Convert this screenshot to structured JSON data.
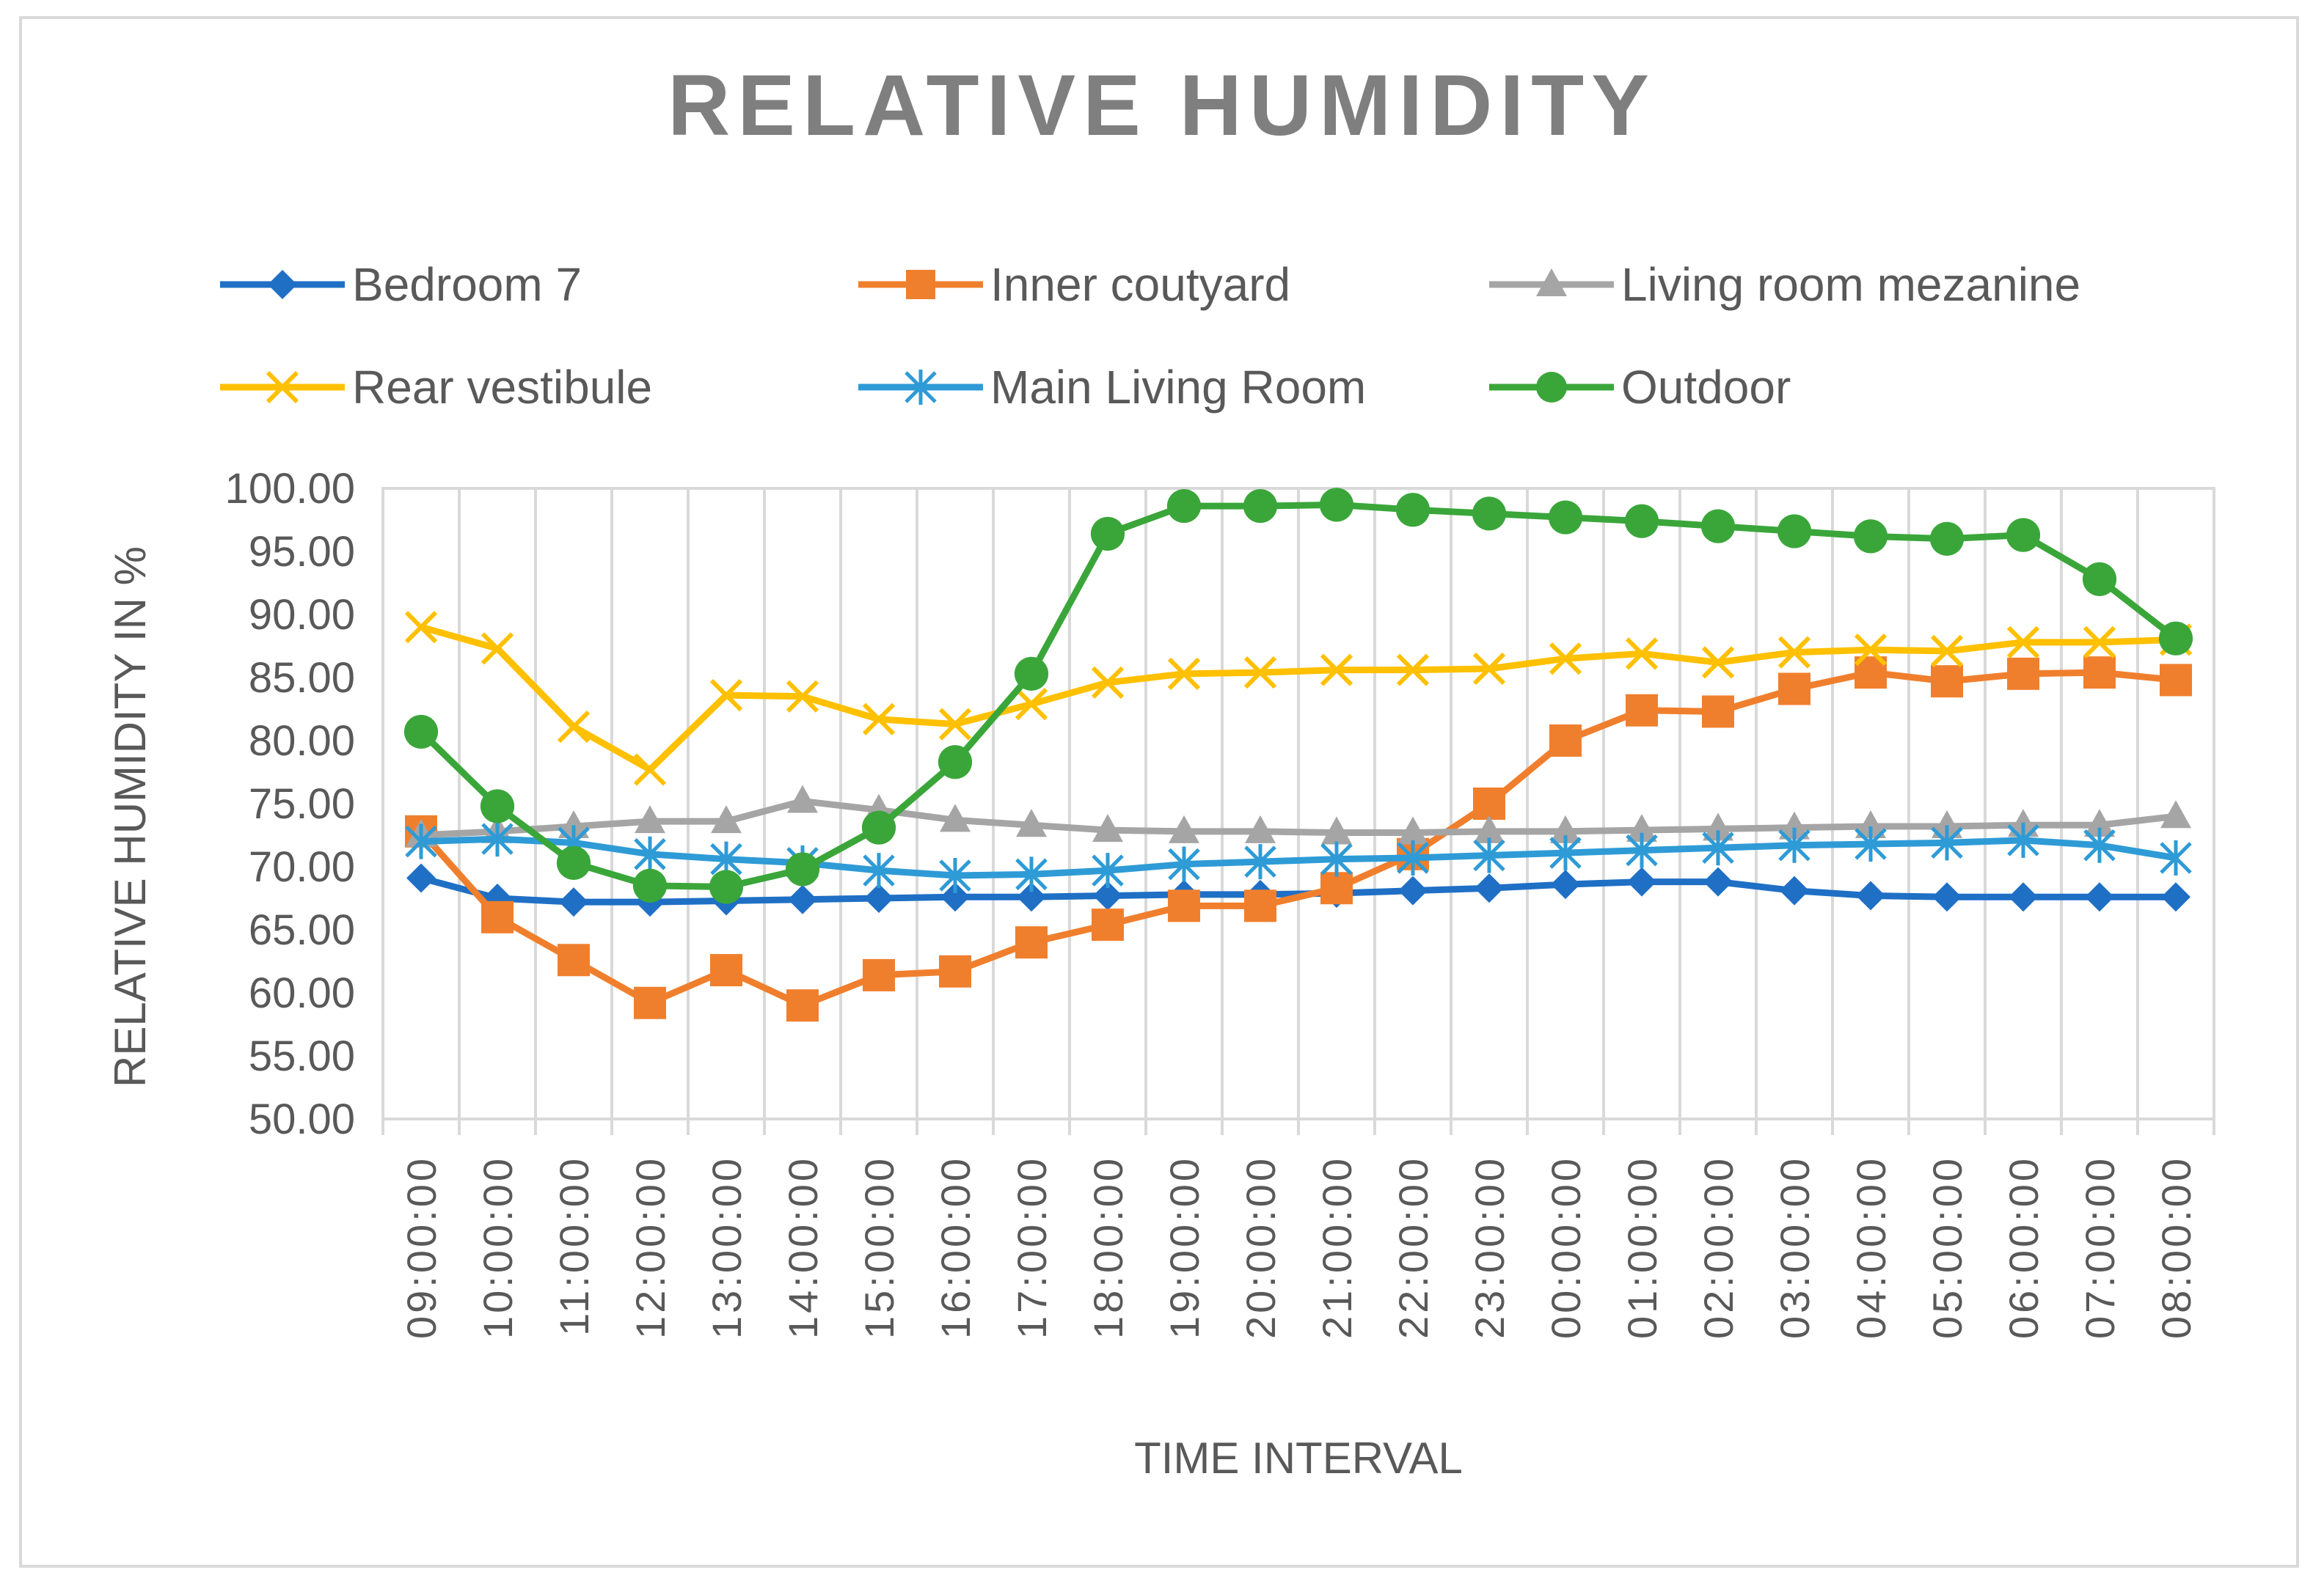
{
  "chart_data": {
    "type": "line",
    "title": "RELATIVE HUMIDITY",
    "xlabel": "TIME INTERVAL",
    "ylabel": "RELATIVE HUMIDITY IN %",
    "ylim": [
      50,
      100
    ],
    "yticks": [
      "100.00",
      "95.00",
      "90.00",
      "85.00",
      "80.00",
      "75.00",
      "70.00",
      "65.00",
      "60.00",
      "55.00",
      "50.00"
    ],
    "grid": "vertical",
    "legend_position": "top",
    "categories": [
      "09:00:00",
      "10:00:00",
      "11:00:00",
      "12:00:00",
      "13:00:00",
      "14:00:00",
      "15:00:00",
      "16:00:00",
      "17:00:00",
      "18:00:00",
      "19:00:00",
      "20:00:00",
      "21:00:00",
      "22:00:00",
      "23:00:00",
      "00:00:00",
      "01:00:00",
      "02:00:00",
      "03:00:00",
      "04:00:00",
      "05:00:00",
      "06:00:00",
      "07:00:00",
      "08:00:00"
    ],
    "series": [
      {
        "name": "Bedroom 7",
        "color": "#1f6fc5",
        "marker": "diamond",
        "values": [
          69.1,
          67.5,
          67.2,
          67.2,
          67.3,
          67.4,
          67.5,
          67.6,
          67.6,
          67.7,
          67.8,
          67.8,
          67.9,
          68.1,
          68.3,
          68.6,
          68.8,
          68.8,
          68.1,
          67.7,
          67.6,
          67.6,
          67.6,
          67.6
        ]
      },
      {
        "name": "Inner coutyard",
        "color": "#f07f2d",
        "marker": "square",
        "values": [
          72.8,
          66.0,
          62.6,
          59.2,
          61.8,
          59.0,
          61.4,
          61.7,
          64.0,
          65.4,
          66.9,
          66.9,
          68.3,
          71.0,
          75.0,
          80.0,
          82.4,
          82.3,
          84.1,
          85.4,
          84.7,
          85.3,
          85.4,
          84.8
        ]
      },
      {
        "name": "Living room mezanine",
        "color": "#a5a5a5",
        "marker": "triangle",
        "values": [
          72.5,
          72.8,
          73.2,
          73.6,
          73.6,
          75.2,
          74.5,
          73.7,
          73.3,
          72.9,
          72.8,
          72.8,
          72.7,
          72.7,
          72.8,
          72.8,
          72.9,
          73.0,
          73.1,
          73.2,
          73.2,
          73.3,
          73.3,
          74.0
        ]
      },
      {
        "name": "Rear vestibule",
        "color": "#ffc000",
        "marker": "x",
        "values": [
          89.0,
          87.3,
          81.1,
          77.7,
          83.6,
          83.5,
          81.7,
          81.3,
          82.9,
          84.6,
          85.3,
          85.4,
          85.6,
          85.6,
          85.7,
          86.5,
          86.9,
          86.2,
          87.0,
          87.2,
          87.1,
          87.8,
          87.8,
          88.0
        ]
      },
      {
        "name": "Main Living Room",
        "color": "#2e9bd6",
        "marker": "asterisk",
        "values": [
          72.0,
          72.2,
          71.9,
          71.0,
          70.6,
          70.3,
          69.7,
          69.3,
          69.4,
          69.7,
          70.2,
          70.4,
          70.6,
          70.7,
          70.9,
          71.1,
          71.3,
          71.5,
          71.7,
          71.8,
          71.9,
          72.1,
          71.7,
          70.7
        ]
      },
      {
        "name": "Outdoor",
        "color": "#3aa63a",
        "marker": "circle",
        "values": [
          80.7,
          74.8,
          70.3,
          68.5,
          68.4,
          69.8,
          73.1,
          78.3,
          85.3,
          96.4,
          98.6,
          98.6,
          98.7,
          98.3,
          98.0,
          97.7,
          97.4,
          97.0,
          96.6,
          96.2,
          96.0,
          96.3,
          92.8,
          88.1
        ]
      }
    ]
  }
}
